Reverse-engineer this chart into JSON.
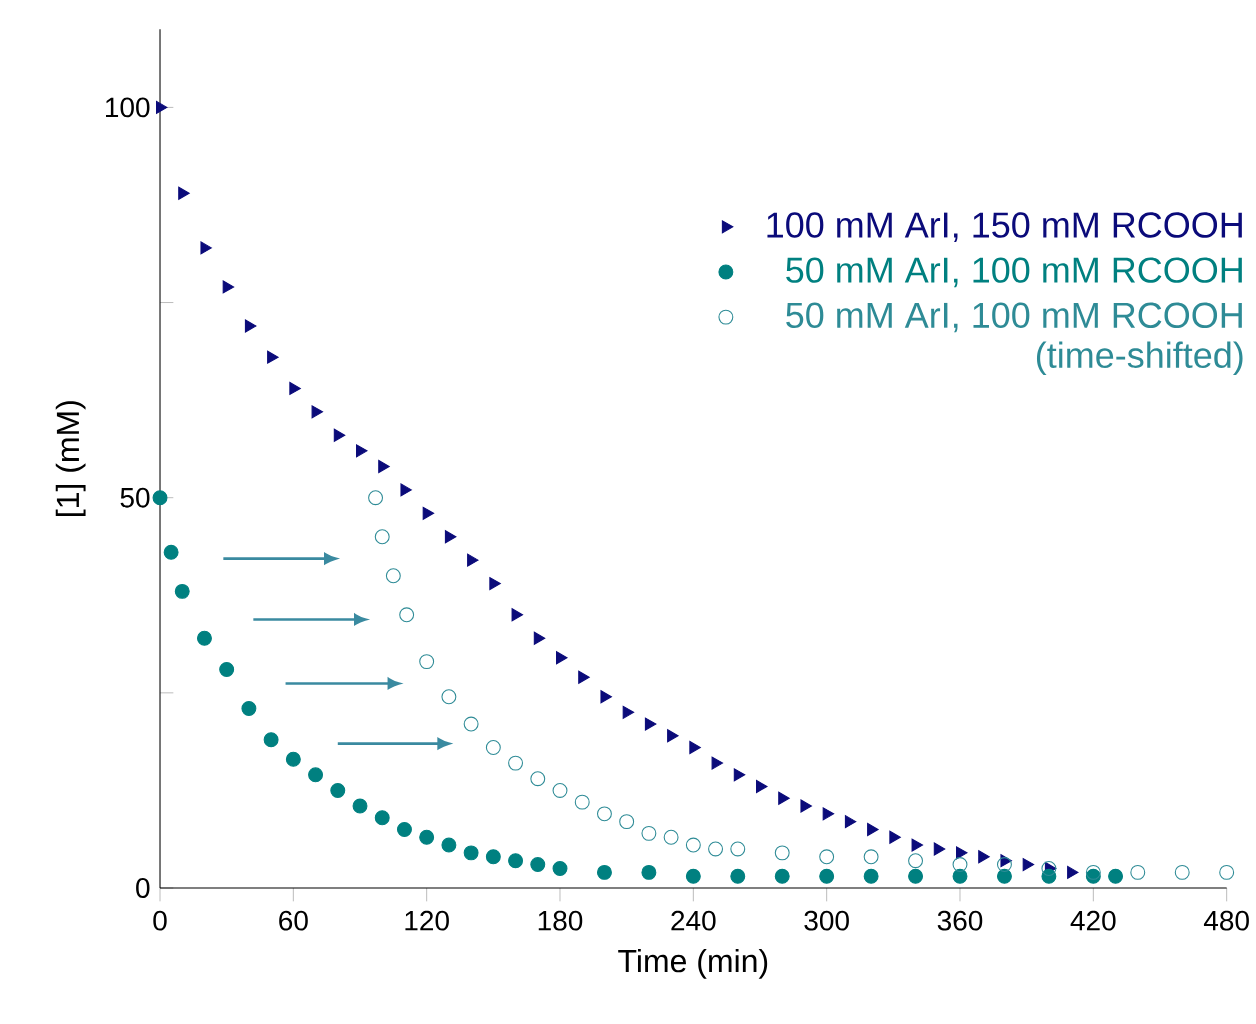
{
  "chart_data": {
    "type": "scatter",
    "xlabel": "Time (min)",
    "ylabel": "[1] (mM)",
    "xlim": [
      0,
      480
    ],
    "ylim": [
      0,
      110
    ],
    "xticks": [
      0,
      60,
      120,
      180,
      240,
      300,
      360,
      420,
      480
    ],
    "yticks": [
      0,
      {
        "value": 25,
        "label": null
      },
      50,
      {
        "value": 75,
        "label": null
      },
      100
    ],
    "grid": false,
    "legend": "top right",
    "series": [
      {
        "name": "100 mM ArI, 150 mM RCOOH",
        "color": "#0b0b7a",
        "marker": "triangle",
        "x": [
          0,
          10,
          20,
          30,
          40,
          50,
          60,
          70,
          80,
          90,
          100,
          110,
          120,
          130,
          140,
          150,
          160,
          170,
          180,
          190,
          200,
          210,
          220,
          230,
          240,
          250,
          260,
          270,
          280,
          290,
          300,
          310,
          320,
          330,
          340,
          350,
          360,
          370,
          380,
          390,
          400,
          410
        ],
        "values": [
          100,
          89,
          82,
          77,
          72,
          68,
          64,
          61,
          58,
          56,
          54,
          51,
          48,
          45,
          42,
          39,
          35,
          32,
          29.5,
          27,
          24.5,
          22.5,
          21,
          19.5,
          18,
          16,
          14.5,
          13,
          11.5,
          10.5,
          9.5,
          8.5,
          7.5,
          6.5,
          5.5,
          5,
          4.5,
          4,
          3.5,
          3,
          2.5,
          2
        ]
      },
      {
        "name": "50 mM ArI, 100 mM RCOOH",
        "color": "#008080",
        "marker": "circle",
        "x": [
          0,
          5,
          10,
          20,
          30,
          40,
          50,
          60,
          70,
          80,
          90,
          100,
          110,
          120,
          130,
          140,
          150,
          160,
          170,
          180,
          200,
          220,
          240,
          260,
          280,
          300,
          320,
          340,
          360,
          380,
          400,
          420,
          430
        ],
        "values": [
          50,
          43,
          38,
          32,
          28,
          23,
          19,
          16.5,
          14.5,
          12.5,
          10.5,
          9,
          7.5,
          6.5,
          5.5,
          4.5,
          4,
          3.5,
          3,
          2.5,
          2,
          2,
          1.5,
          1.5,
          1.5,
          1.5,
          1.5,
          1.5,
          1.5,
          1.5,
          1.5,
          1.5,
          1.5
        ]
      },
      {
        "name": "50 mM ArI, 100 mM RCOOH (time-shifted)",
        "color": "#2e8b96",
        "marker": "circle",
        "x": [
          97,
          100,
          105,
          111,
          120,
          130,
          140,
          150,
          160,
          170,
          180,
          190,
          200,
          210,
          220,
          230,
          240,
          250,
          260,
          280,
          300,
          320,
          340,
          360,
          380,
          400,
          420,
          440,
          460,
          480
        ],
        "values": [
          50,
          45,
          40,
          35,
          29,
          24.5,
          21,
          18,
          16,
          14,
          12.5,
          11,
          9.5,
          8.5,
          7,
          6.5,
          5.5,
          5,
          5,
          4.5,
          4,
          4,
          3.5,
          3,
          3,
          2.5,
          2,
          2,
          2,
          2
        ]
      }
    ]
  }
}
